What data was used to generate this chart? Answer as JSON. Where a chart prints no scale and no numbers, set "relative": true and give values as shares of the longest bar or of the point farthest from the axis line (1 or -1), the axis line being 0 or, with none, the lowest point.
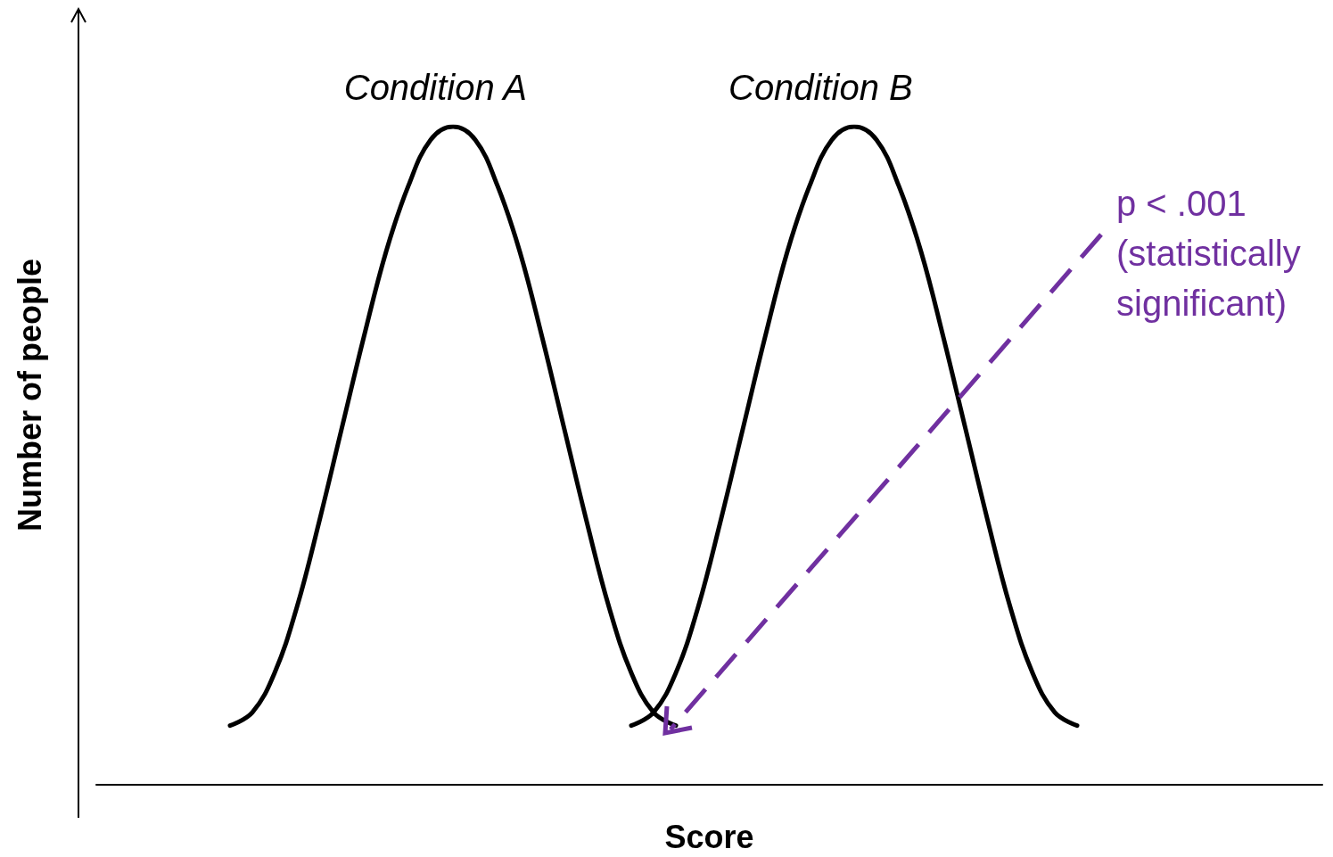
{
  "chart_data": {
    "type": "line",
    "relative": true,
    "xlabel": "Score",
    "ylabel": "Number of people",
    "marker": "none",
    "grid": false,
    "categories": [
      null,
      null,
      null,
      null,
      null,
      null,
      null,
      null,
      null,
      null,
      null,
      null,
      null,
      null,
      null,
      null,
      null,
      null,
      null,
      null,
      null,
      null,
      null,
      null,
      null,
      null,
      null,
      null,
      null,
      null,
      null,
      null,
      null,
      null,
      null,
      null,
      null,
      null,
      null,
      null,
      null,
      null,
      null,
      null,
      null,
      null,
      null,
      null,
      null,
      null,
      null,
      null,
      null,
      null,
      null,
      null
    ],
    "series": [
      {
        "color": "#000000",
        "values": [
          null,
          null,
          null,
          null,
          null,
          null,
          0.09,
          0.11,
          0.17,
          0.27,
          0.4,
          0.54,
          0.68,
          0.81,
          0.91,
          0.98,
          1,
          0.98,
          0.91,
          0.81,
          0.68,
          0.54,
          0.4,
          0.27,
          0.17,
          0.11,
          0.09,
          null,
          null,
          null,
          null,
          null,
          null,
          null,
          null,
          null,
          null,
          null,
          null,
          null,
          null,
          null,
          null,
          null,
          null,
          null,
          null,
          null,
          null,
          null,
          null,
          null,
          null,
          null,
          null,
          null
        ]
      },
      {
        "color": "#000000",
        "values": [
          null,
          null,
          null,
          null,
          null,
          null,
          null,
          null,
          null,
          null,
          null,
          null,
          null,
          null,
          null,
          null,
          null,
          null,
          null,
          null,
          null,
          null,
          null,
          null,
          0.09,
          0.11,
          0.17,
          0.27,
          0.4,
          0.54,
          0.68,
          0.81,
          0.91,
          0.98,
          1,
          0.98,
          0.91,
          0.81,
          0.68,
          0.54,
          0.4,
          0.27,
          0.17,
          0.11,
          0.09,
          null,
          null,
          null,
          null,
          null,
          null,
          null,
          null,
          null,
          null,
          null
        ]
      }
    ],
    "annotations": [
      "Condition A",
      "Condition B",
      "p < .001 (statistically significant)"
    ]
  }
}
